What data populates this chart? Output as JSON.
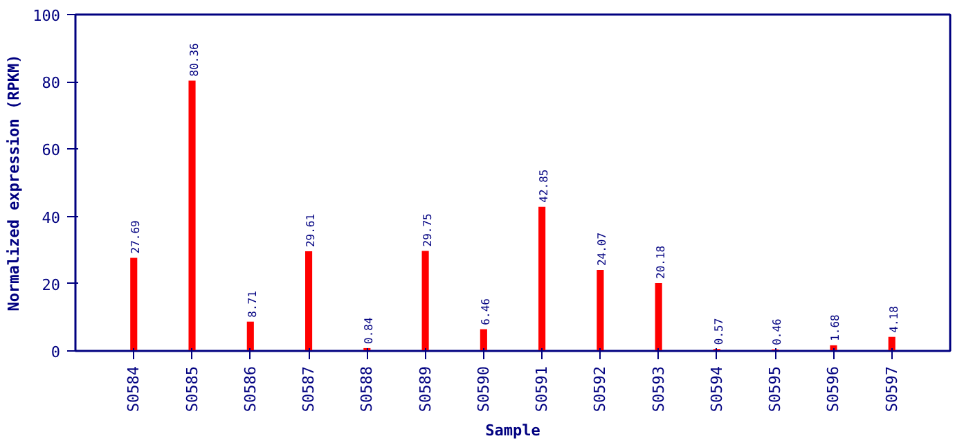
{
  "chart_data": {
    "type": "bar",
    "xlabel": "Sample",
    "ylabel": "Normalized expression (RPKM)",
    "categories": [
      "S0584",
      "S0585",
      "S0586",
      "S0587",
      "S0588",
      "S0589",
      "S0590",
      "S0591",
      "S0592",
      "S0593",
      "S0594",
      "S0595",
      "S0596",
      "S0597"
    ],
    "values": [
      27.69,
      80.36,
      8.71,
      29.61,
      0.84,
      29.75,
      6.46,
      42.85,
      24.07,
      20.18,
      0.57,
      0.46,
      1.68,
      4.18
    ],
    "color": "#ff0000",
    "ylim": [
      0,
      100
    ],
    "yticks": [
      0,
      20,
      40,
      60,
      80,
      100
    ],
    "data_labels": true,
    "grid": false
  }
}
